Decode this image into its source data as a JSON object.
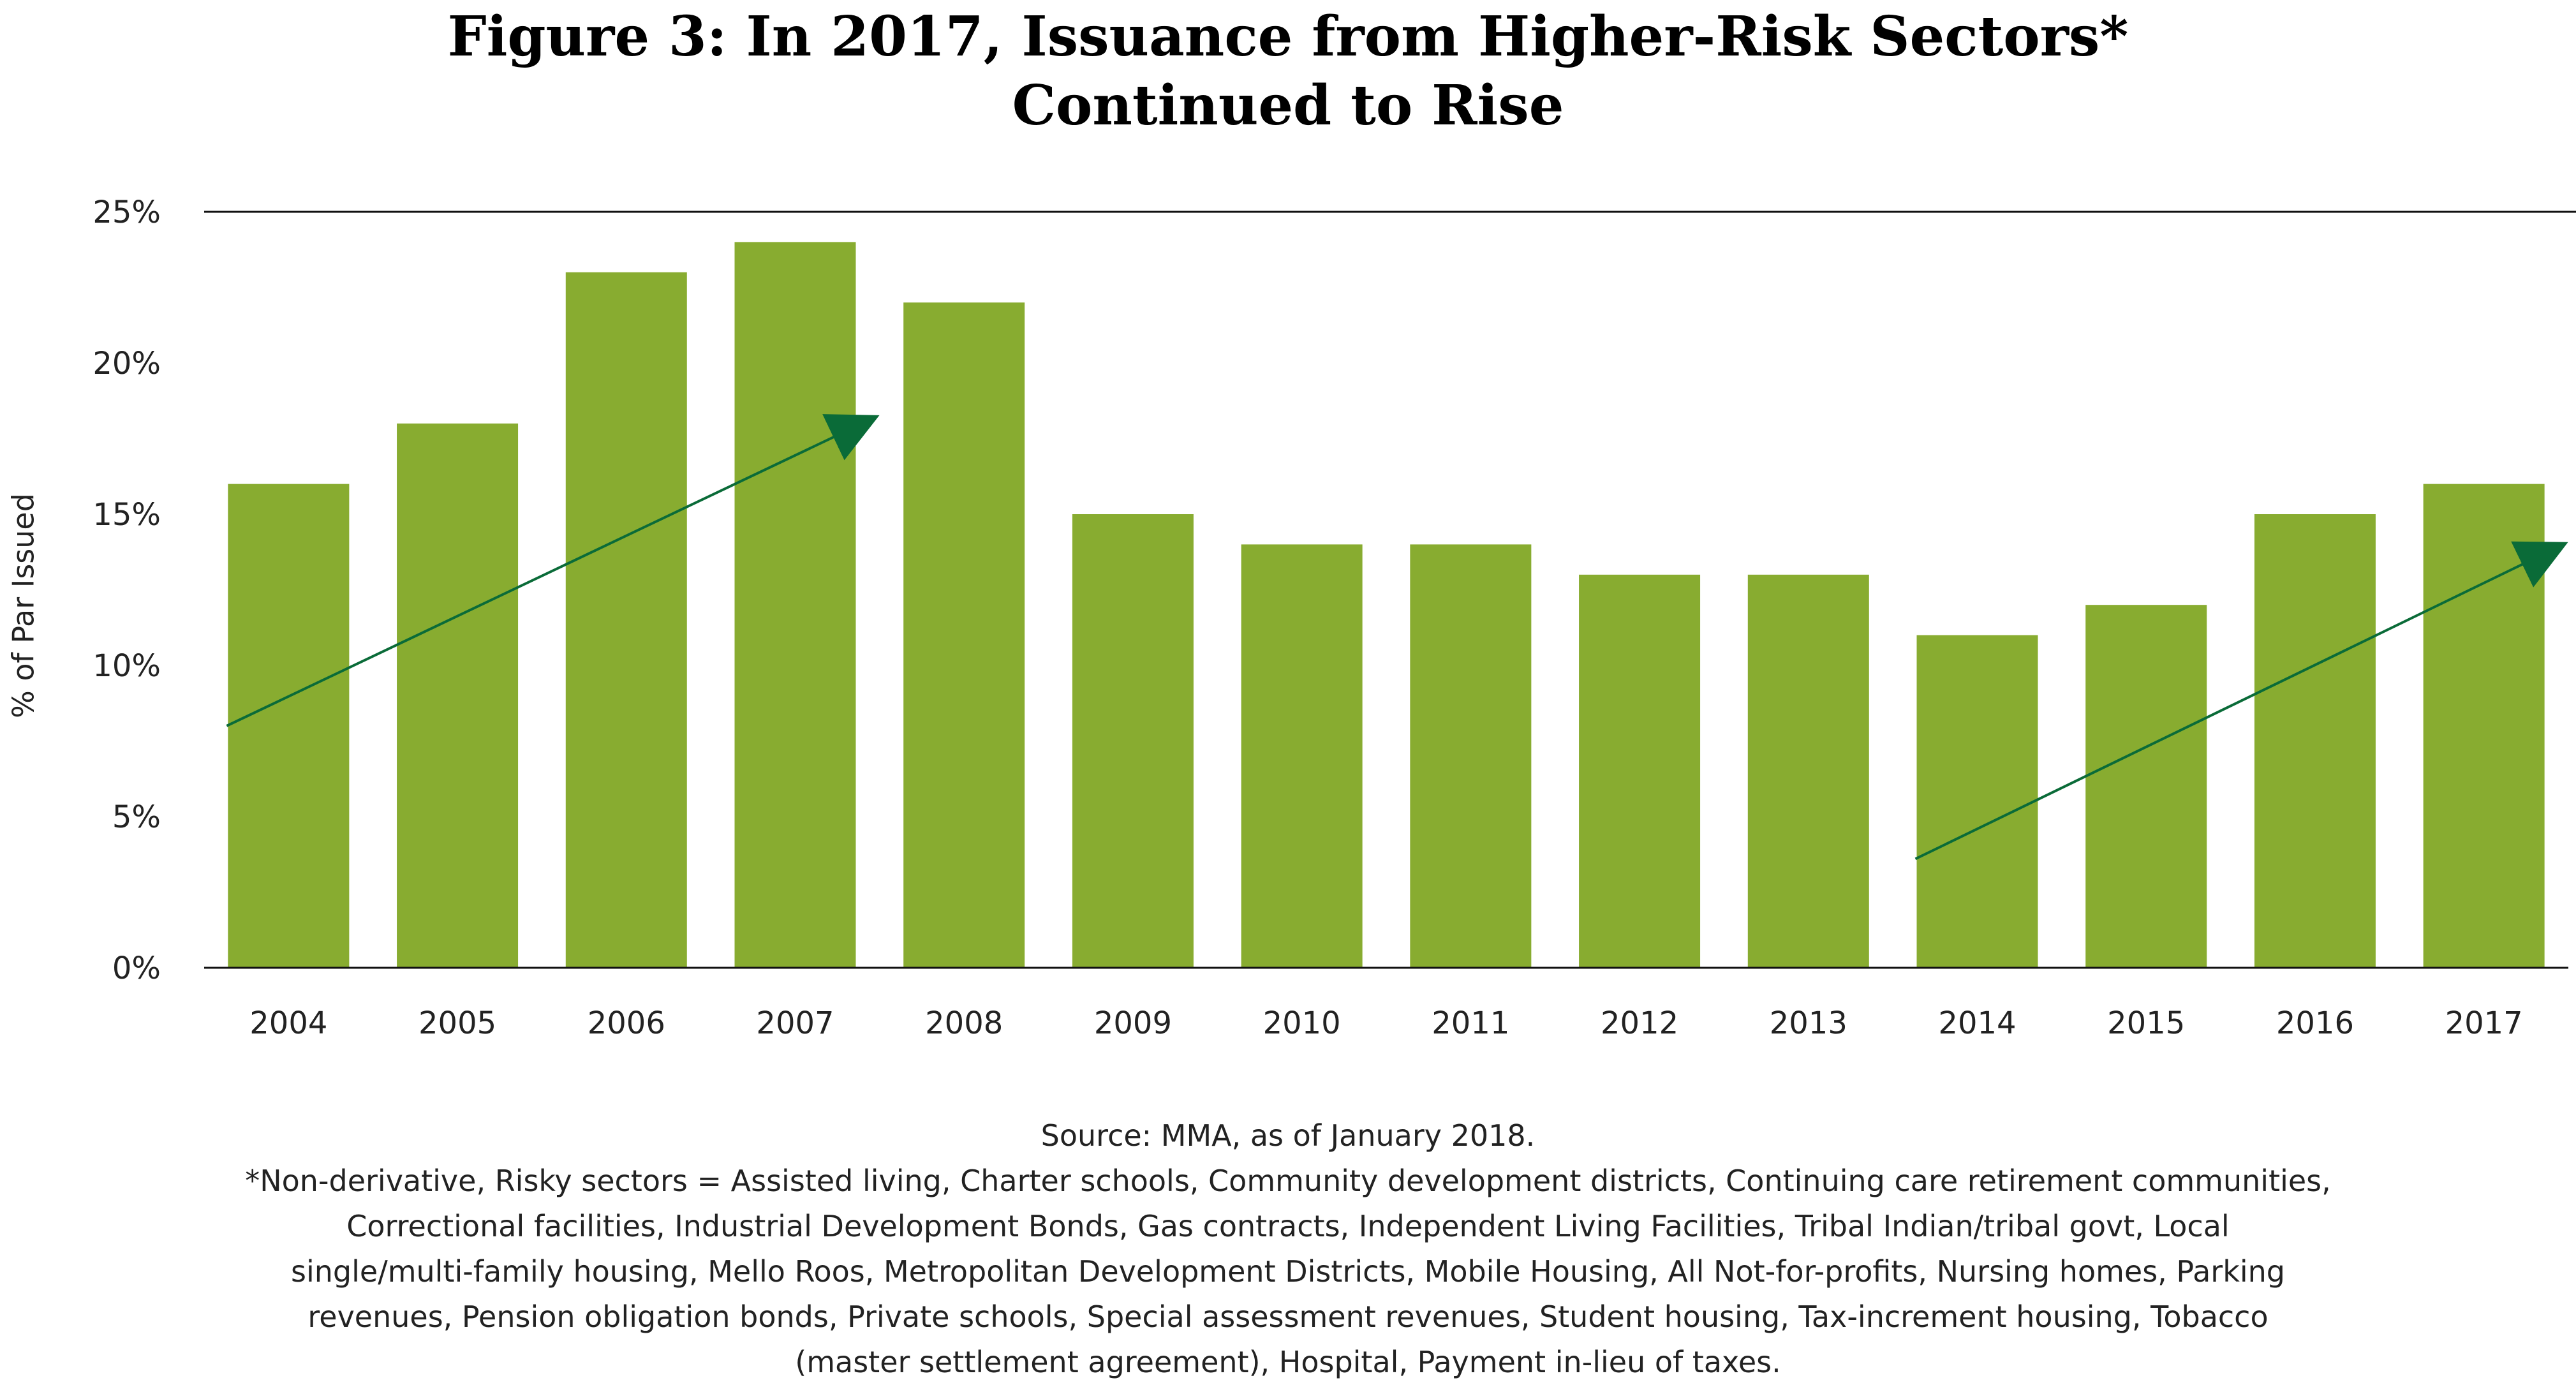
{
  "title_lines": [
    "Figure 3: In 2017, Issuance from Higher-Risk Sectors*",
    "Continued to Rise"
  ],
  "colors": {
    "bar": "#88AC30",
    "trend": "#0A6B38",
    "axis": "#111111",
    "text": "#222222"
  },
  "chart_data": {
    "type": "bar",
    "categories": [
      "2004",
      "2005",
      "2006",
      "2007",
      "2008",
      "2009",
      "2010",
      "2011",
      "2012",
      "2013",
      "2014",
      "2015",
      "2016",
      "2017"
    ],
    "values": [
      16,
      18,
      23,
      24,
      22,
      15,
      14,
      14,
      13,
      13,
      11,
      12,
      15,
      16
    ],
    "ylabel": "% of Par Issued",
    "ylim": [
      0,
      25
    ],
    "yticks": [
      0,
      5,
      10,
      15,
      20,
      25
    ],
    "ytick_labels": [
      "0%",
      "5%",
      "10%",
      "15%",
      "20%",
      "25%"
    ],
    "grid": false,
    "trend_arrows": [
      {
        "from": [
          "2004",
          8
        ],
        "to": [
          "2007",
          18
        ]
      },
      {
        "from": [
          "2014",
          3.6
        ],
        "to": [
          "2017",
          13.8
        ]
      }
    ]
  },
  "footer": {
    "source": "Source: MMA, as of January 2018.",
    "note_lines": [
      "*Non-derivative, Risky sectors = Assisted living, Charter schools, Community development districts, Continuing care retirement communities,",
      "Correctional facilities, Industrial Development Bonds, Gas contracts, Independent Living Facilities, Tribal Indian/tribal govt, Local",
      "single/multi-family housing, Mello Roos, Metropolitan Development Districts, Mobile Housing, All Not-for-profits, Nursing homes, Parking",
      "revenues, Pension obligation bonds, Private schools, Special assessment revenues, Student housing, Tax-increment housing, Tobacco",
      "(master settlement agreement), Hospital, Payment in-lieu of taxes."
    ]
  }
}
